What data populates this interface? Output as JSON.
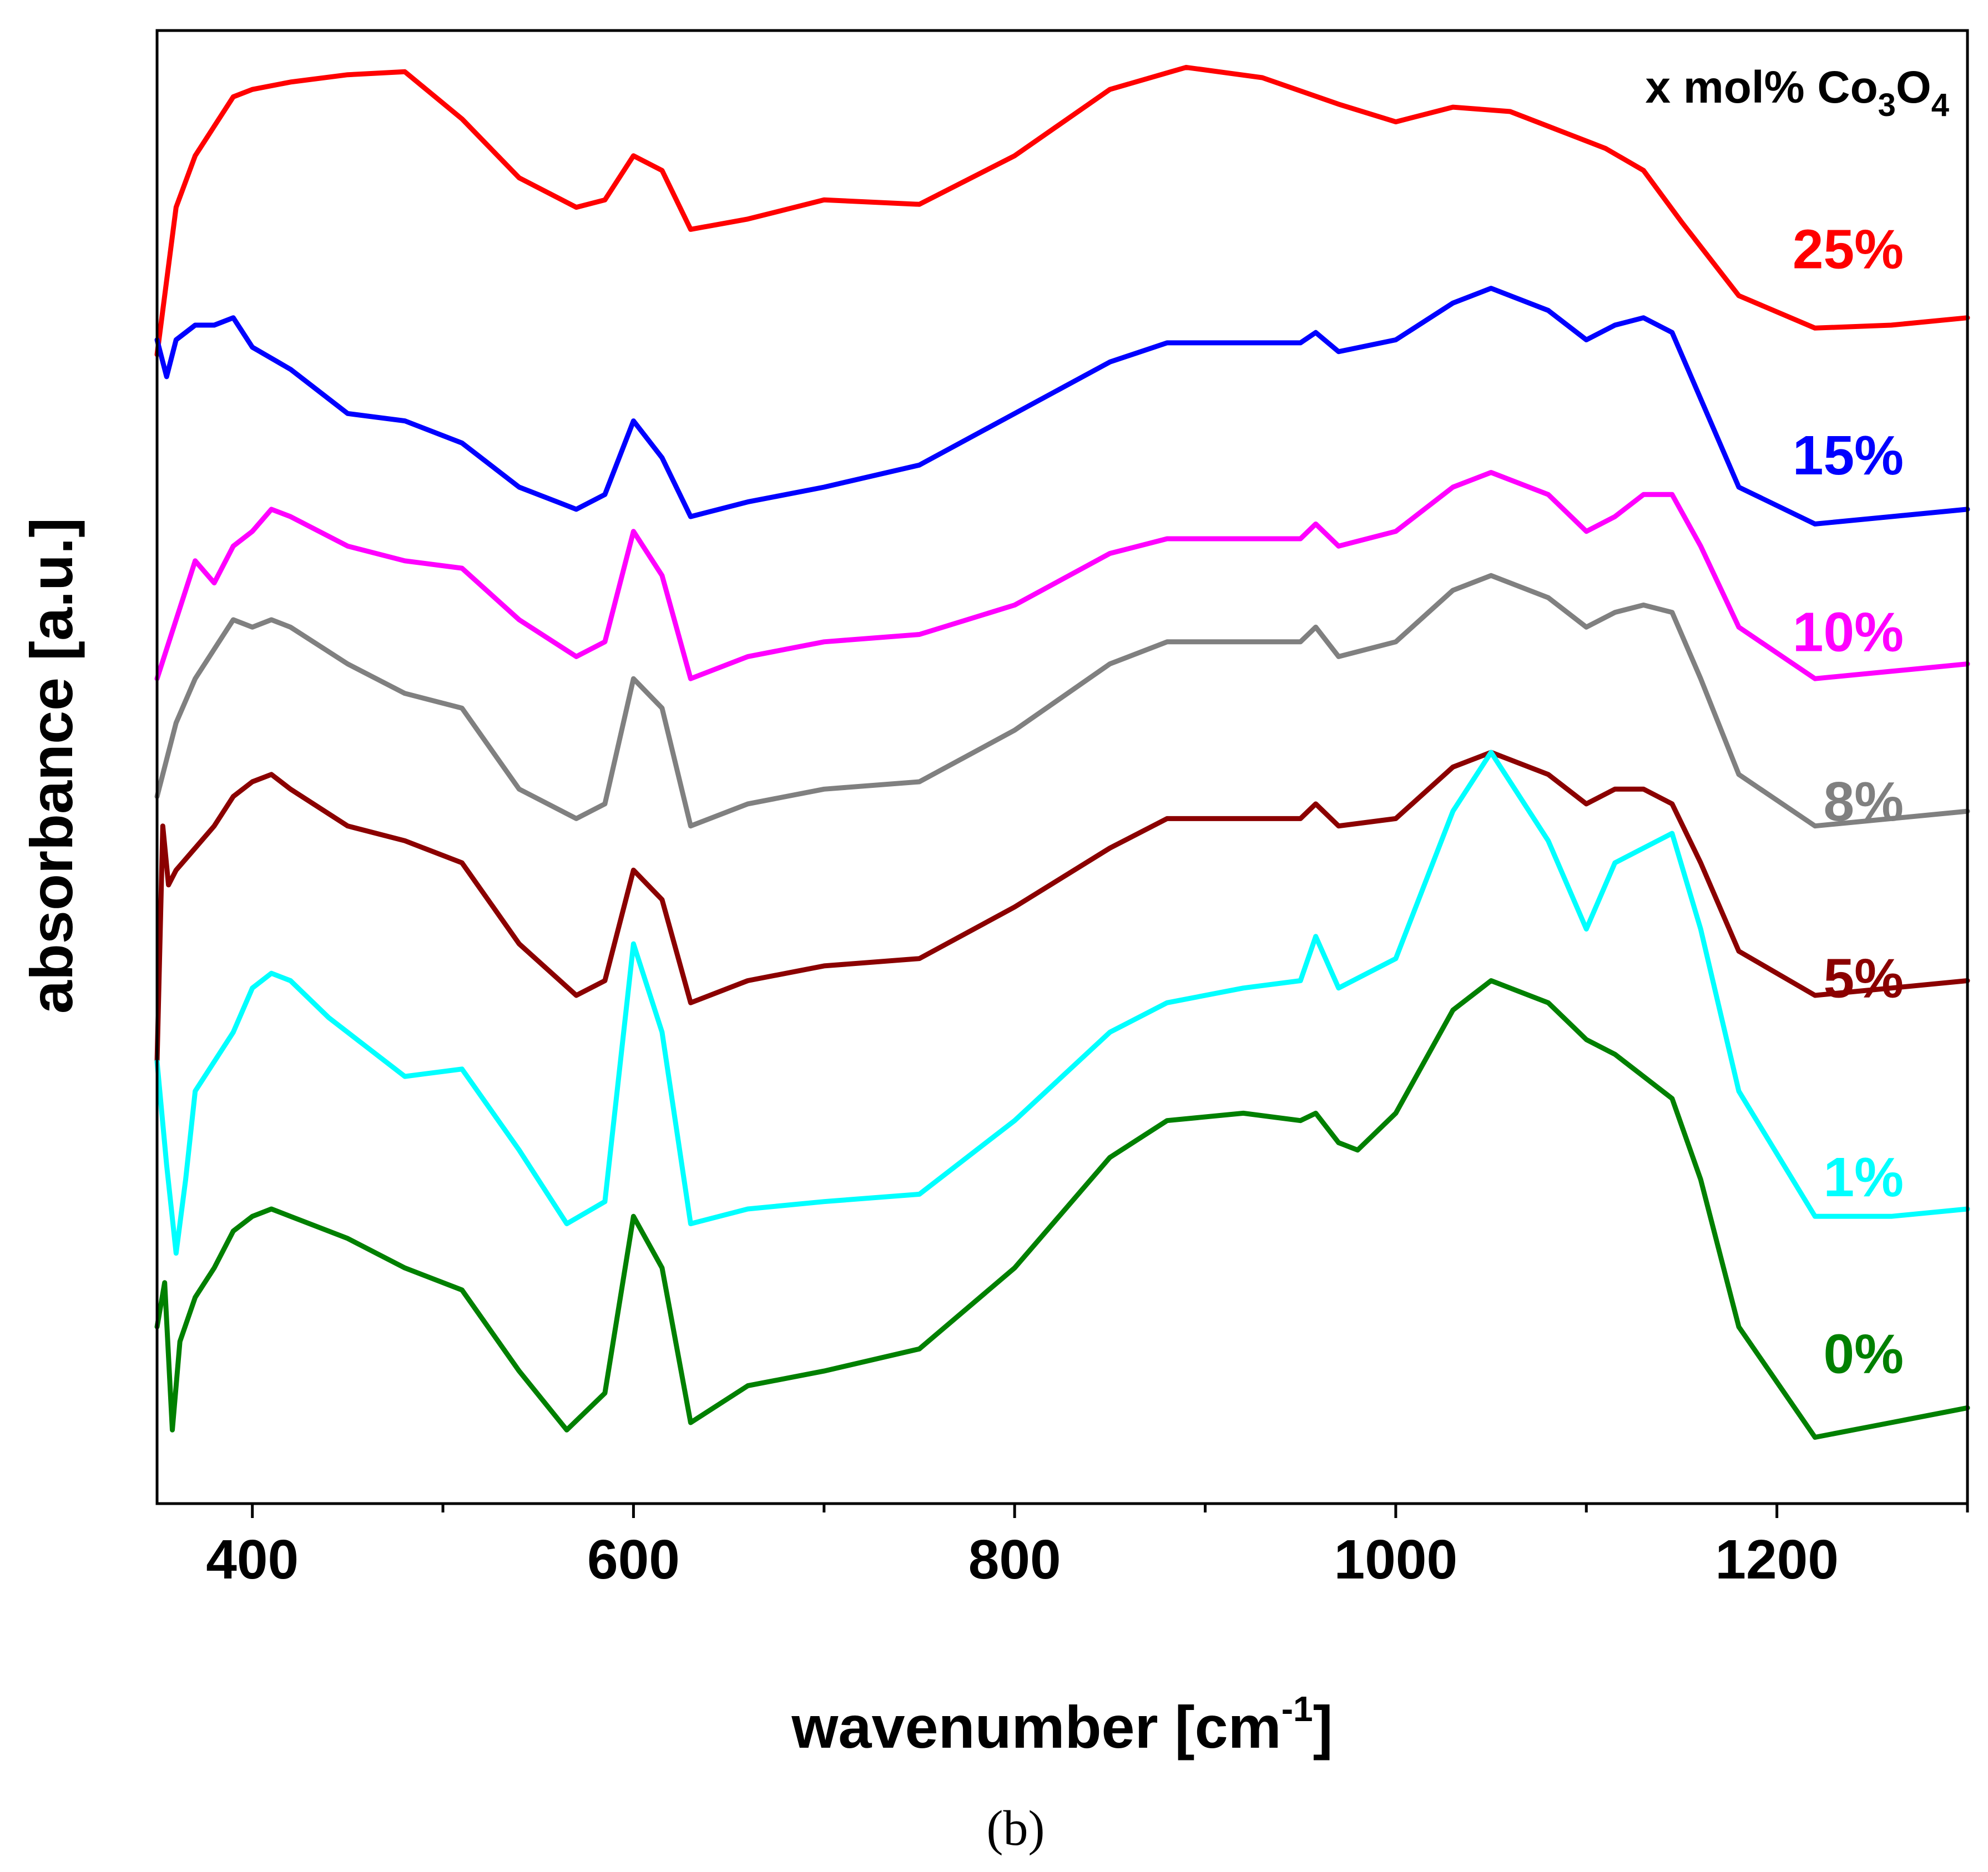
{
  "chart_data": {
    "type": "line",
    "title": "",
    "xlabel": "wavenumber [cm",
    "xlabel_sup": "-1",
    "xlabel_end": "]",
    "ylabel": "absorbance [a.u.]",
    "xlim": [
      350,
      1300
    ],
    "ylim": [
      0,
      10
    ],
    "x_ticks": [
      400,
      600,
      800,
      1000,
      1200
    ],
    "x_tick_labels": [
      "400",
      "600",
      "800",
      "1000",
      "1200"
    ],
    "x_minor_ticks": [
      500,
      700,
      900,
      1100,
      1300
    ],
    "y_ticks": [],
    "grid": false,
    "legend_title": {
      "prefix": "x mol% Co",
      "sub1": "3",
      "mid": "O",
      "sub2": "4"
    },
    "legend_placement": "right, beside each curve",
    "caption": "(b)",
    "series": [
      {
        "name": "25%",
        "color": "#FF0000",
        "label_y": 8.5,
        "x": [
          350,
          360,
          370,
          380,
          390,
          400,
          420,
          450,
          480,
          510,
          540,
          570,
          585,
          600,
          615,
          630,
          660,
          700,
          750,
          800,
          850,
          890,
          930,
          970,
          1000,
          1030,
          1060,
          1090,
          1110,
          1130,
          1150,
          1180,
          1220,
          1260,
          1300
        ],
        "y": [
          7.8,
          8.8,
          9.15,
          9.35,
          9.55,
          9.6,
          9.65,
          9.7,
          9.72,
          9.4,
          9.0,
          8.8,
          8.85,
          9.15,
          9.05,
          8.65,
          8.72,
          8.85,
          8.82,
          9.15,
          9.6,
          9.75,
          9.68,
          9.5,
          9.38,
          9.48,
          9.45,
          9.3,
          9.2,
          9.05,
          8.7,
          8.2,
          7.98,
          8.0,
          8.05
        ]
      },
      {
        "name": "15%",
        "color": "#0000FF",
        "label_y": 7.1,
        "x": [
          350,
          355,
          360,
          370,
          380,
          390,
          400,
          420,
          450,
          480,
          510,
          540,
          570,
          585,
          600,
          615,
          630,
          660,
          700,
          750,
          800,
          850,
          880,
          920,
          950,
          958,
          970,
          1000,
          1030,
          1050,
          1080,
          1100,
          1115,
          1130,
          1145,
          1160,
          1180,
          1220,
          1260,
          1300
        ],
        "y": [
          7.9,
          7.65,
          7.9,
          8.0,
          8.0,
          8.05,
          7.85,
          7.7,
          7.4,
          7.35,
          7.2,
          6.9,
          6.75,
          6.85,
          7.35,
          7.1,
          6.7,
          6.8,
          6.9,
          7.05,
          7.4,
          7.75,
          7.88,
          7.88,
          7.88,
          7.95,
          7.82,
          7.9,
          8.15,
          8.25,
          8.1,
          7.9,
          8.0,
          8.05,
          7.95,
          7.5,
          6.9,
          6.65,
          6.7,
          6.75
        ]
      },
      {
        "name": "10%",
        "color": "#FF00FF",
        "label_y": 5.9,
        "x": [
          350,
          360,
          370,
          380,
          390,
          400,
          410,
          420,
          450,
          480,
          510,
          540,
          570,
          585,
          600,
          615,
          630,
          660,
          700,
          750,
          800,
          850,
          880,
          920,
          950,
          958,
          970,
          1000,
          1030,
          1050,
          1080,
          1100,
          1115,
          1130,
          1145,
          1160,
          1180,
          1220,
          1260,
          1300
        ],
        "y": [
          5.6,
          6.0,
          6.4,
          6.25,
          6.5,
          6.6,
          6.75,
          6.7,
          6.5,
          6.4,
          6.35,
          6.0,
          5.75,
          5.85,
          6.6,
          6.3,
          5.6,
          5.75,
          5.85,
          5.9,
          6.1,
          6.45,
          6.55,
          6.55,
          6.55,
          6.65,
          6.5,
          6.6,
          6.9,
          7.0,
          6.85,
          6.6,
          6.7,
          6.85,
          6.85,
          6.5,
          5.95,
          5.6,
          5.65,
          5.7
        ]
      },
      {
        "name": "8%",
        "color": "#808080",
        "label_y": 4.75,
        "x": [
          350,
          360,
          370,
          380,
          390,
          400,
          410,
          420,
          450,
          480,
          510,
          540,
          570,
          585,
          600,
          615,
          630,
          660,
          700,
          750,
          800,
          850,
          880,
          920,
          950,
          958,
          970,
          1000,
          1030,
          1050,
          1080,
          1100,
          1115,
          1130,
          1145,
          1160,
          1180,
          1220,
          1260,
          1300
        ],
        "y": [
          4.8,
          5.3,
          5.6,
          5.8,
          6.0,
          5.95,
          6.0,
          5.95,
          5.7,
          5.5,
          5.4,
          4.85,
          4.65,
          4.75,
          5.6,
          5.4,
          4.6,
          4.75,
          4.85,
          4.9,
          5.25,
          5.7,
          5.85,
          5.85,
          5.85,
          5.95,
          5.75,
          5.85,
          6.2,
          6.3,
          6.15,
          5.95,
          6.05,
          6.1,
          6.05,
          5.6,
          4.95,
          4.6,
          4.65,
          4.7
        ]
      },
      {
        "name": "5%",
        "color": "#8B0000",
        "label_y": 3.55,
        "x": [
          350,
          353,
          356,
          360,
          370,
          380,
          390,
          400,
          410,
          420,
          450,
          480,
          510,
          540,
          570,
          585,
          600,
          615,
          630,
          660,
          700,
          750,
          800,
          850,
          880,
          920,
          950,
          958,
          970,
          1000,
          1030,
          1050,
          1080,
          1100,
          1115,
          1130,
          1145,
          1160,
          1180,
          1220,
          1260,
          1300
        ],
        "y": [
          3.0,
          4.6,
          4.2,
          4.3,
          4.45,
          4.6,
          4.8,
          4.9,
          4.95,
          4.85,
          4.6,
          4.5,
          4.35,
          3.8,
          3.45,
          3.55,
          4.3,
          4.1,
          3.4,
          3.55,
          3.65,
          3.7,
          4.05,
          4.45,
          4.65,
          4.65,
          4.65,
          4.75,
          4.6,
          4.65,
          5.0,
          5.1,
          4.95,
          4.75,
          4.85,
          4.85,
          4.75,
          4.35,
          3.75,
          3.45,
          3.5,
          3.55
        ]
      },
      {
        "name": "1%",
        "color": "#00FFFF",
        "label_y": 2.2,
        "x": [
          350,
          355,
          360,
          365,
          370,
          380,
          390,
          400,
          410,
          420,
          440,
          460,
          480,
          510,
          540,
          565,
          585,
          600,
          615,
          630,
          660,
          700,
          750,
          800,
          850,
          880,
          920,
          950,
          958,
          970,
          1000,
          1030,
          1050,
          1080,
          1100,
          1115,
          1130,
          1145,
          1160,
          1180,
          1220,
          1260,
          1300
        ],
        "y": [
          3.0,
          2.3,
          1.7,
          2.2,
          2.8,
          3.0,
          3.2,
          3.5,
          3.6,
          3.55,
          3.3,
          3.1,
          2.9,
          2.95,
          2.4,
          1.9,
          2.05,
          3.8,
          3.2,
          1.9,
          2.0,
          2.05,
          2.1,
          2.6,
          3.2,
          3.4,
          3.5,
          3.55,
          3.85,
          3.5,
          3.7,
          4.7,
          5.1,
          4.5,
          3.9,
          4.35,
          4.45,
          4.55,
          3.9,
          2.8,
          1.95,
          1.95,
          2.0
        ]
      },
      {
        "name": "0%",
        "color": "#008000",
        "label_y": 1.0,
        "x": [
          350,
          354,
          358,
          362,
          370,
          380,
          390,
          400,
          410,
          420,
          450,
          480,
          510,
          540,
          565,
          585,
          600,
          615,
          630,
          660,
          700,
          750,
          800,
          850,
          880,
          920,
          950,
          958,
          970,
          980,
          1000,
          1030,
          1050,
          1080,
          1100,
          1115,
          1130,
          1145,
          1160,
          1180,
          1220,
          1260,
          1300
        ],
        "y": [
          1.2,
          1.5,
          0.5,
          1.1,
          1.4,
          1.6,
          1.85,
          1.95,
          2.0,
          1.95,
          1.8,
          1.6,
          1.45,
          0.9,
          0.5,
          0.75,
          1.95,
          1.6,
          0.55,
          0.8,
          0.9,
          1.05,
          1.6,
          2.35,
          2.6,
          2.65,
          2.6,
          2.65,
          2.45,
          2.4,
          2.65,
          3.35,
          3.55,
          3.4,
          3.15,
          3.05,
          2.9,
          2.75,
          2.2,
          1.2,
          0.45,
          0.55,
          0.65
        ]
      }
    ]
  }
}
